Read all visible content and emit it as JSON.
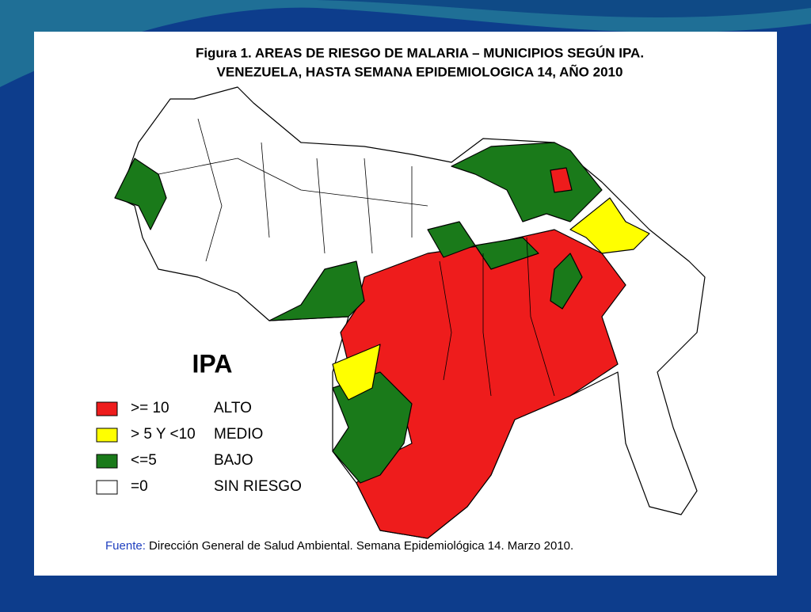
{
  "header": {
    "title_line1": "Figura 1. AREAS DE RIESGO DE MALARIA – MUNICIPIOS SEGÚN IPA.",
    "title_line2": "VENEZUELA, HASTA SEMANA EPIDEMIOLOGICA 14, AÑO 2010"
  },
  "legend": {
    "title": "IPA",
    "items": [
      {
        "range": ">= 10",
        "label": "ALTO",
        "color": "#ee1c1c"
      },
      {
        "range": "> 5 Y <10",
        "label": "MEDIO",
        "color": "#ffff00"
      },
      {
        "range": "<=5",
        "label": "BAJO",
        "color": "#1a7a1a"
      },
      {
        "range": "=0",
        "label": "SIN RIESGO",
        "color": "#ffffff"
      }
    ]
  },
  "footer": {
    "source_label": "Fuente:",
    "source_text": "Dirección General de Salud Ambiental. Semana Epidemiológica 14. Marzo 2010."
  }
}
